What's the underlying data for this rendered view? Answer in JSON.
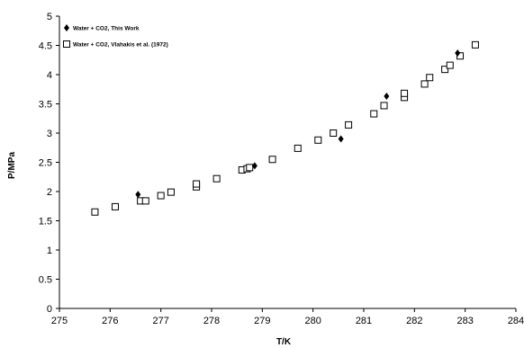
{
  "chart_data": {
    "type": "scatter",
    "title": "",
    "xlabel": "T/K",
    "ylabel": "P/MPa",
    "xlim": [
      275,
      284
    ],
    "ylim": [
      0,
      5
    ],
    "x_ticks": [
      "275",
      "276",
      "277",
      "278",
      "279",
      "280",
      "281",
      "282",
      "283",
      "284"
    ],
    "y_ticks": [
      "0",
      "0.5",
      "1",
      "1.5",
      "2",
      "2.5",
      "3",
      "3.5",
      "4",
      "4.5",
      "5"
    ],
    "grid": false,
    "legend_position": "top-left",
    "series": [
      {
        "name": "Water + CO2, This Work",
        "marker": "diamond-filled",
        "color": "#000000",
        "points": [
          [
            276.55,
            1.95
          ],
          [
            278.85,
            2.44
          ],
          [
            280.55,
            2.9
          ],
          [
            281.45,
            3.63
          ],
          [
            282.85,
            4.37
          ]
        ]
      },
      {
        "name": "Water + CO2, Vlahakis et al. (1972)",
        "marker": "square-open",
        "color": "#000000",
        "points": [
          [
            275.7,
            1.65
          ],
          [
            276.1,
            1.74
          ],
          [
            276.6,
            1.84
          ],
          [
            276.7,
            1.84
          ],
          [
            277.0,
            1.93
          ],
          [
            277.2,
            1.99
          ],
          [
            277.7,
            2.08
          ],
          [
            277.7,
            2.13
          ],
          [
            278.1,
            2.22
          ],
          [
            278.6,
            2.37
          ],
          [
            278.7,
            2.39
          ],
          [
            278.75,
            2.41
          ],
          [
            279.2,
            2.55
          ],
          [
            279.7,
            2.74
          ],
          [
            280.1,
            2.88
          ],
          [
            280.4,
            3.0
          ],
          [
            280.7,
            3.14
          ],
          [
            281.2,
            3.33
          ],
          [
            281.4,
            3.47
          ],
          [
            281.8,
            3.61
          ],
          [
            281.8,
            3.68
          ],
          [
            282.2,
            3.84
          ],
          [
            282.3,
            3.95
          ],
          [
            282.6,
            4.09
          ],
          [
            282.7,
            4.16
          ],
          [
            282.9,
            4.32
          ],
          [
            283.2,
            4.51
          ]
        ]
      }
    ]
  }
}
